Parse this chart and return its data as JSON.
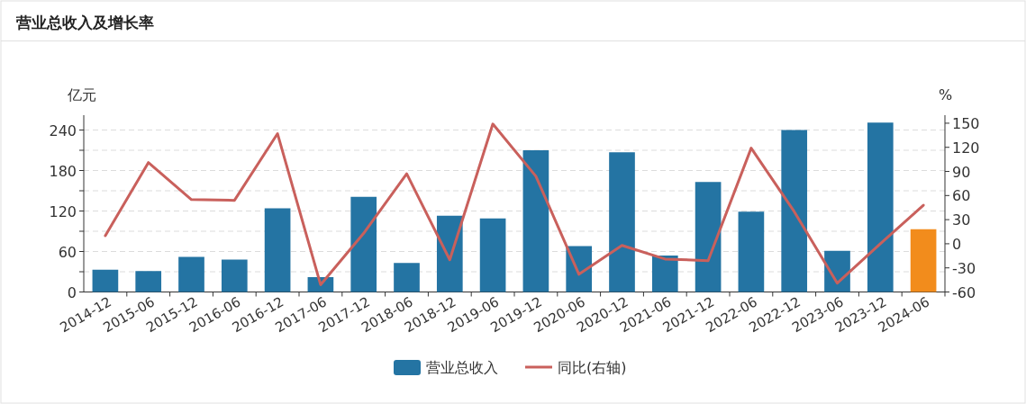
{
  "chart_data": {
    "type": "bar",
    "title": "营业总收入及增长率",
    "ylabel": "亿元",
    "y2label": "%",
    "categories": [
      "2014-12",
      "2015-06",
      "2015-12",
      "2016-06",
      "2016-12",
      "2017-06",
      "2017-12",
      "2018-06",
      "2018-12",
      "2019-06",
      "2019-12",
      "2020-06",
      "2020-12",
      "2021-06",
      "2021-12",
      "2022-06",
      "2022-12",
      "2023-06",
      "2023-12",
      "2024-06"
    ],
    "series": [
      {
        "name": "营业总收入",
        "color": "#2474a3",
        "colors": [
          "#2474a3",
          "#2474a3",
          "#2474a3",
          "#2474a3",
          "#2474a3",
          "#2474a3",
          "#2474a3",
          "#2474a3",
          "#2474a3",
          "#2474a3",
          "#2474a3",
          "#2474a3",
          "#2474a3",
          "#2474a3",
          "#2474a3",
          "#2474a3",
          "#2474a3",
          "#2474a3",
          "#2474a3",
          "#f28c1c"
        ],
        "values": [
          33,
          31,
          52,
          48,
          124,
          22,
          141,
          43,
          113,
          109,
          210,
          68,
          207,
          54,
          163,
          119,
          240,
          61,
          251,
          93
        ]
      },
      {
        "name": "同比(右轴)",
        "type": "line",
        "axis": "y2",
        "color": "#c9605c",
        "values": [
          10,
          101,
          55,
          54,
          137,
          -51,
          13,
          87,
          -20,
          149,
          84,
          -38,
          -2,
          -19,
          -21,
          119,
          40,
          -49,
          0,
          48
        ]
      }
    ],
    "ylim": [
      0,
      262
    ],
    "yticks": [
      0,
      {
        "value": 30,
        "label": null
      },
      60,
      {
        "value": 90,
        "label": null
      },
      120,
      {
        "value": 150,
        "label": null
      },
      180,
      {
        "value": 210,
        "label": null
      },
      240
    ],
    "y2lim": [
      -60,
      160
    ],
    "y2ticks": [
      -60,
      -30,
      0,
      30,
      60,
      90,
      120,
      150
    ],
    "grid": "y",
    "legend": "bottom"
  }
}
